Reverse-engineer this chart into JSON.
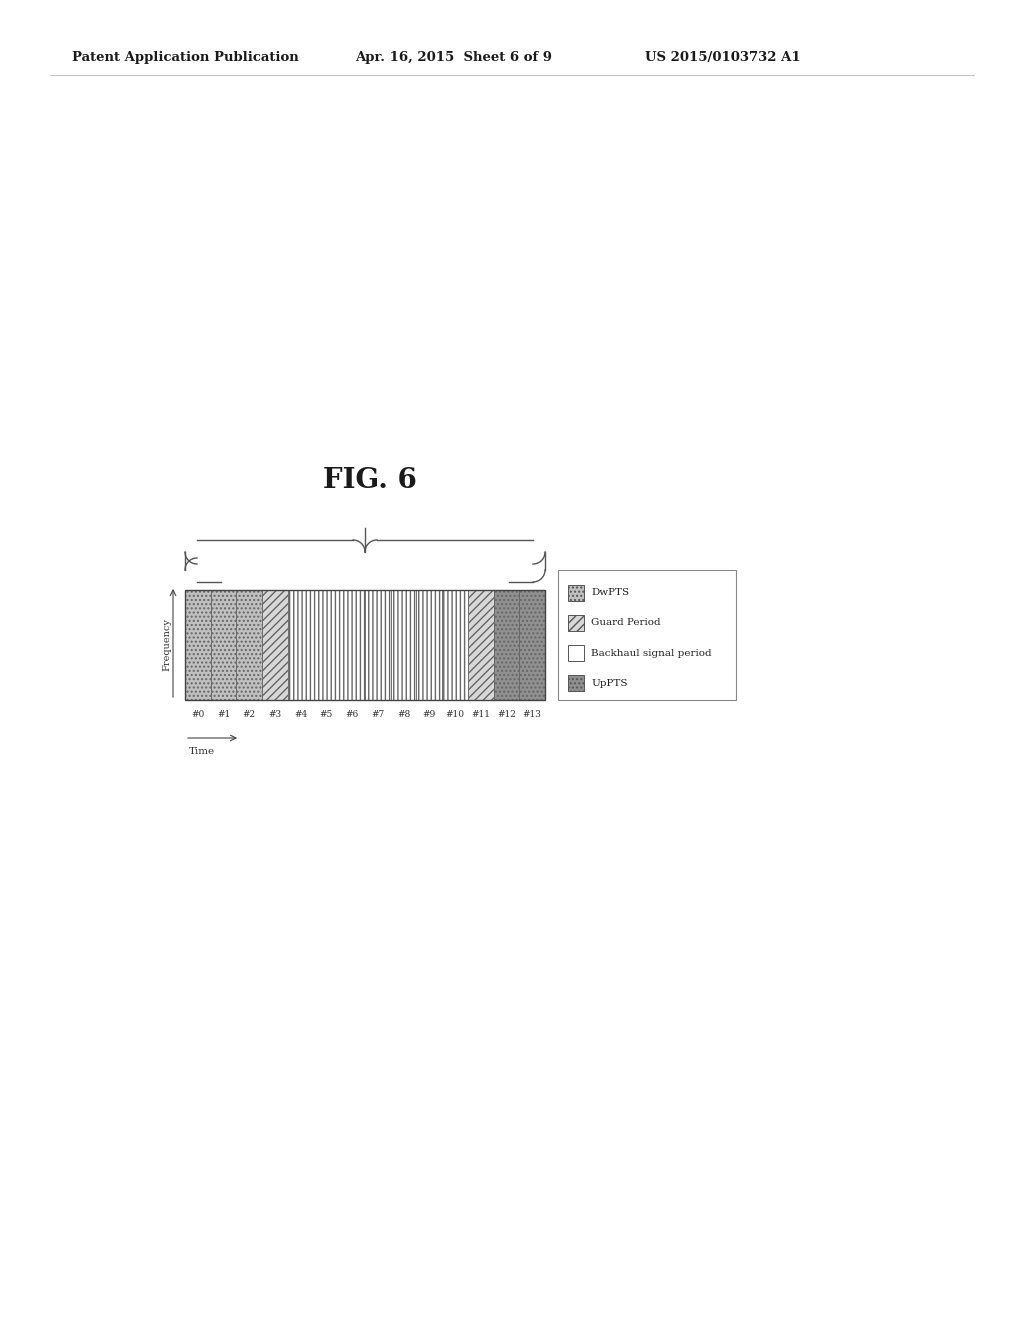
{
  "header_left": "Patent Application Publication",
  "header_center": "Apr. 16, 2015  Sheet 6 of 9",
  "header_right": "US 2015/0103732 A1",
  "fig_title": "FIG. 6",
  "xlabel": "Time",
  "ylabel": "Frequency",
  "subframe_labels": [
    "#0",
    "#1",
    "#2",
    "#3",
    "#4",
    "#5",
    "#6",
    "#7",
    "#8",
    "#9",
    "#10",
    "#11",
    "#12",
    "#13"
  ],
  "segment_map": [
    "DwPTS",
    "DwPTS",
    "DwPTS",
    "Guard",
    "Backhaul",
    "Backhaul",
    "Backhaul",
    "Backhaul",
    "Backhaul",
    "Backhaul",
    "Backhaul",
    "Guard",
    "UpPTS",
    "UpPTS"
  ],
  "legend_items": [
    {
      "label": "DwPTS",
      "type": "dot_gray"
    },
    {
      "label": "Guard Period",
      "type": "hatch_diagonal"
    },
    {
      "label": "Backhaul signal period",
      "type": "white"
    },
    {
      "label": "UpPTS",
      "type": "dot_dark"
    }
  ],
  "background_color": "#ffffff"
}
